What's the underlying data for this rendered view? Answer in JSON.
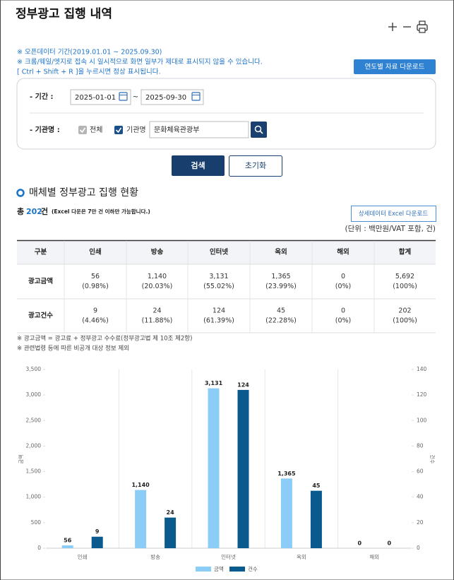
{
  "header": {
    "title": "정부광고 집행 내역"
  },
  "notices": [
    "※ 오픈데이터 기간(2019.01.01 ~ 2025.09.30)",
    "※ 크롬/웨일/엣지로 접속 시 일시적으로 화면 일부가 제대로 표시되지 않을 수 있습니다.",
    "[ Ctrl + Shift + R ]을 누르시면 정상 표시됩니다."
  ],
  "buttons": {
    "yearly_download": "연도별 자료 다운로드",
    "search": "검색",
    "reset": "초기화",
    "excel_download": "상세데이터 Excel 다운로드"
  },
  "form": {
    "period_label": "- 기간 :",
    "start_date": "2025-01-01",
    "separator": "~",
    "end_date": "2025-09-30",
    "agency_label": "- 기관명 :",
    "all_label": "전체",
    "agency_check_label": "기관명",
    "agency_value": "문화체육관광부"
  },
  "section_title": "매체별 정부광고 집행 현황",
  "summary": {
    "prefix": "총",
    "count": 202,
    "suffix": "건",
    "note": "(Excel 다운은 7만 건 이하만 가능합니다.)"
  },
  "unit": "(단위 : 백만원/VAT 포함, 건)",
  "table": {
    "columns": [
      "구분",
      "인쇄",
      "방송",
      "인터넷",
      "옥외",
      "해외",
      "합계"
    ],
    "rows": [
      {
        "label": "광고금액",
        "cells": [
          [
            "56",
            "(0.98%)"
          ],
          [
            "1,140",
            "(20.03%)"
          ],
          [
            "3,131",
            "(55.02%)"
          ],
          [
            "1,365",
            "(23.99%)"
          ],
          [
            "0",
            "(0%)"
          ],
          [
            "5,692",
            "(100%)"
          ]
        ]
      },
      {
        "label": "광고건수",
        "cells": [
          [
            "9",
            "(4.46%)"
          ],
          [
            "24",
            "(11.88%)"
          ],
          [
            "124",
            "(61.39%)"
          ],
          [
            "45",
            "(22.28%)"
          ],
          [
            "0",
            "(0%)"
          ],
          [
            "202",
            "(100%)"
          ]
        ]
      }
    ]
  },
  "footnotes": [
    "※ 광고금액 = 광고료 + 정부광고 수수료(정부광고법 제 10조 제2항)",
    "※ 관련법령 등에 따른 비공개 대상 정보 제외"
  ],
  "chart_data": {
    "type": "bar",
    "categories": [
      "인쇄",
      "방송",
      "인터넷",
      "옥외",
      "해외"
    ],
    "y_label": "금액",
    "y2_label": "건수",
    "series": [
      {
        "name": "금액",
        "color": "#8ccdf7",
        "values": [
          56,
          1140,
          3131,
          1365,
          0
        ],
        "value_labels": [
          "56",
          "1,140",
          "3,131",
          "1,365",
          "0"
        ]
      },
      {
        "name": "건수",
        "color": "#0b5a8e",
        "axis": "y2",
        "values": [
          9,
          24,
          124,
          45,
          0
        ]
      }
    ],
    "ylim": [
      0,
      3500
    ],
    "yticks": [
      0,
      500,
      {
        "value": 1000,
        "label": "1,000"
      },
      {
        "value": 1500,
        "label": "1,500"
      },
      {
        "value": 2000,
        "label": "2,000"
      },
      {
        "value": 2500,
        "label": "2,500"
      },
      {
        "value": 3000,
        "label": "3,000"
      },
      {
        "value": 3500,
        "label": "3,500"
      }
    ],
    "y2lim": [
      0,
      140
    ],
    "y2ticks": [
      0,
      20,
      40,
      60,
      80,
      100,
      120,
      140
    ],
    "legend": "bottom"
  }
}
